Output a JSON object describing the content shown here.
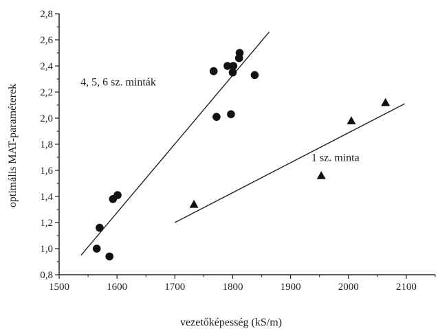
{
  "chart_data": {
    "type": "scatter",
    "xlabel": "vezetőképesség (kS/m)",
    "ylabel": "optimális MAT-paraméterek",
    "xlim": [
      1500,
      2150
    ],
    "ylim": [
      0.8,
      2.8
    ],
    "x_ticks": [
      1500,
      1600,
      1700,
      1800,
      1900,
      2000,
      2100
    ],
    "y_ticks": [
      0.8,
      1.0,
      1.2,
      1.4,
      1.6,
      1.8,
      2.0,
      2.2,
      2.4,
      2.6,
      2.8
    ],
    "x_tick_labels": [
      "1500",
      "1600",
      "1700",
      "1800",
      "1900",
      "2000",
      "2100"
    ],
    "y_tick_labels": [
      "0,8",
      "1,0",
      "1,2",
      "1,4",
      "1,6",
      "1,8",
      "2,0",
      "2,2",
      "2,4",
      "2,6",
      "2,8"
    ],
    "grid": false,
    "series": [
      {
        "marker": "circle",
        "points": [
          [
            1565,
            1.0
          ],
          [
            1570,
            1.16
          ],
          [
            1587,
            0.94
          ],
          [
            1593,
            1.38
          ],
          [
            1601,
            1.41
          ],
          [
            1767,
            2.36
          ],
          [
            1772,
            2.01
          ],
          [
            1791,
            2.4
          ],
          [
            1797,
            2.03
          ],
          [
            1800,
            2.35
          ],
          [
            1801,
            2.4
          ],
          [
            1811,
            2.46
          ],
          [
            1812,
            2.5
          ],
          [
            1838,
            2.33
          ]
        ],
        "fit_line": [
          [
            1538,
            0.95
          ],
          [
            1863,
            2.66
          ]
        ]
      },
      {
        "marker": "triangle",
        "points": [
          [
            1733,
            1.34
          ],
          [
            1953,
            1.56
          ],
          [
            2005,
            1.98
          ],
          [
            2064,
            2.12
          ]
        ],
        "fit_line": [
          [
            1700,
            1.2
          ],
          [
            2097,
            2.11
          ]
        ]
      }
    ],
    "annotations": [
      {
        "text": "4, 5, 6 sz. minták",
        "x": 1537,
        "y": 2.25
      },
      {
        "text": "1 sz. minta",
        "x": 1936,
        "y": 1.67
      }
    ]
  }
}
